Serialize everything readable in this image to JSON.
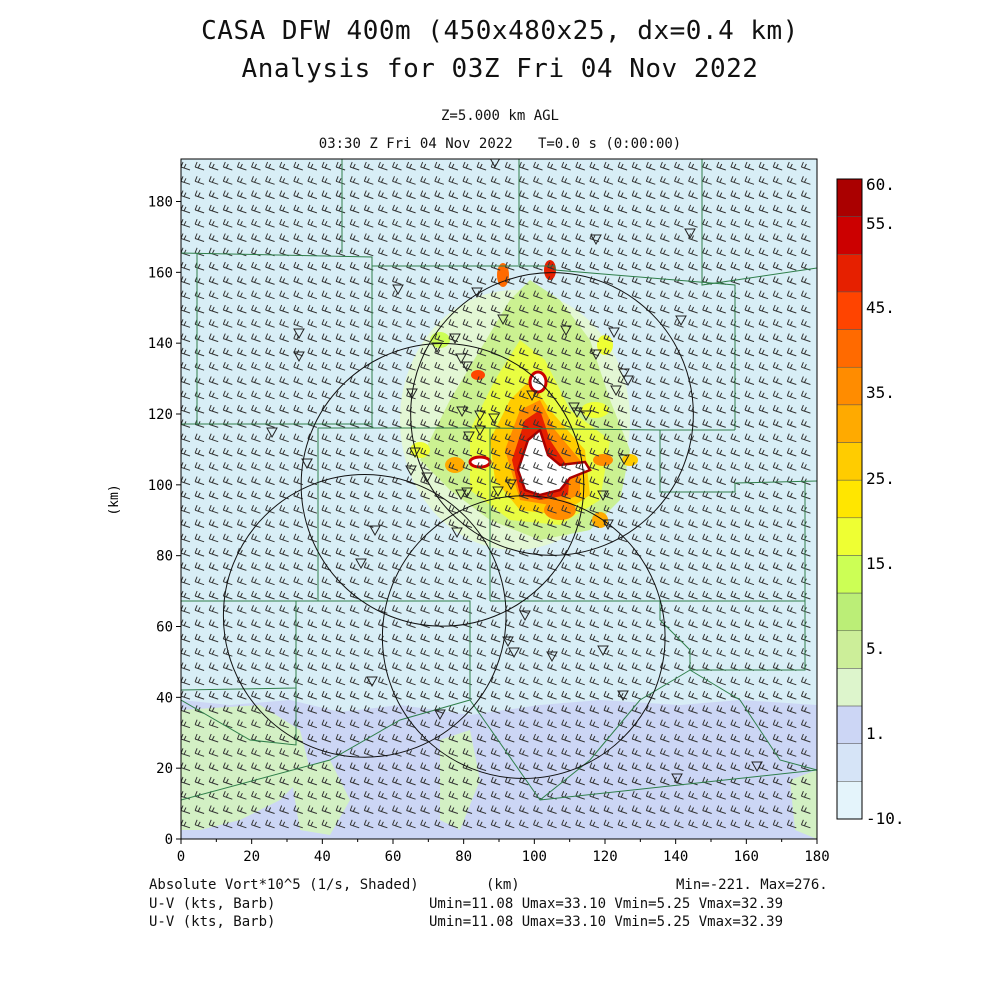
{
  "header": {
    "title_line1": "CASA DFW 400m (450x480x25, dx=0.4 km)",
    "title_line2": "Analysis for 03Z Fri 04 Nov 2022",
    "level": "Z=5.000 km AGL",
    "valid_time": "03:30 Z Fri 04 Nov 2022",
    "sim_time": "T=0.0 s (0:00:00)"
  },
  "axes": {
    "x_label": "(km)",
    "y_label": "(km)",
    "x_ticks": [
      "0",
      "20",
      "40",
      "60",
      "80",
      "100",
      "120",
      "140",
      "160",
      "180"
    ],
    "y_ticks": [
      "0",
      "20",
      "40",
      "60",
      "80",
      "100",
      "120",
      "140",
      "160",
      "180"
    ],
    "x_range": [
      0,
      180
    ],
    "y_range": [
      0,
      192
    ]
  },
  "colorbar": {
    "labels": [
      "60.",
      "55.",
      "45.",
      "35.",
      "25.",
      "15.",
      "5.",
      "1.",
      "-10."
    ],
    "colors": [
      "#aa0000",
      "#cc0000",
      "#e62000",
      "#ff4400",
      "#ff6a00",
      "#ff8c00",
      "#ffaa00",
      "#ffcc00",
      "#ffe600",
      "#eeff33",
      "#ccff55",
      "#bbee77",
      "#ccee99",
      "#ddf5cc",
      "#ccd6f5",
      "#d6e4f7",
      "#e4f4fb"
    ]
  },
  "footer": {
    "field_label": "Absolute Vort*10^5 (1/s, Shaded)",
    "x_unit": "(km)",
    "minmax": "Min=-221. Max=276.",
    "wind1_label": "U-V (kts, Barb)",
    "wind1_stats": "Umin=11.08 Umax=33.10 Vmin=5.25 Vmax=32.39",
    "wind2_label": "U-V (kts, Barb)",
    "wind2_stats": "Umin=11.08 Umax=33.10 Vmin=5.25 Vmax=32.39"
  },
  "radars_km": [
    {
      "x": 52,
      "y": 63,
      "r": 40
    },
    {
      "x": 97,
      "y": 57,
      "r": 40
    },
    {
      "x": 74,
      "y": 100,
      "r": 40
    },
    {
      "x": 105,
      "y": 120,
      "r": 40
    }
  ],
  "colors": {
    "background_field": "#d8eef6",
    "county_lines": "#2f7f4a",
    "barbs": "#333333",
    "range_rings": "#111111"
  }
}
